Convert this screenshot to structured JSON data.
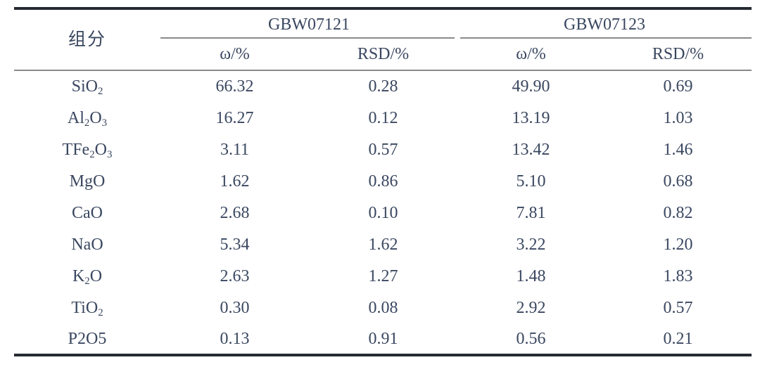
{
  "colors": {
    "background": "#ffffff",
    "text": "#3a4760",
    "rule_heavy": "#262b33",
    "rule_light": "#8a8a8a"
  },
  "table": {
    "component_header": "组分",
    "groups": [
      {
        "name": "GBW07121",
        "subheaders": [
          "ω/%",
          "RSD/%"
        ]
      },
      {
        "name": "GBW07123",
        "subheaders": [
          "ω/%",
          "RSD/%"
        ]
      }
    ],
    "rows": [
      {
        "component": "SiO_2",
        "values": [
          "66.32",
          "0.28",
          "49.90",
          "0.69"
        ]
      },
      {
        "component": "Al_2O_3",
        "values": [
          "16.27",
          "0.12",
          "13.19",
          "1.03"
        ]
      },
      {
        "component": "TFe_2O_3",
        "values": [
          "3.11",
          "0.57",
          "13.42",
          "1.46"
        ]
      },
      {
        "component": "MgO",
        "values": [
          "1.62",
          "0.86",
          "5.10",
          "0.68"
        ]
      },
      {
        "component": "CaO",
        "values": [
          "2.68",
          "0.10",
          "7.81",
          "0.82"
        ]
      },
      {
        "component": "NaO",
        "values": [
          "5.34",
          "1.62",
          "3.22",
          "1.20"
        ]
      },
      {
        "component": "K_2O",
        "values": [
          "2.63",
          "1.27",
          "1.48",
          "1.83"
        ]
      },
      {
        "component": "TiO_2",
        "values": [
          "0.30",
          "0.08",
          "2.92",
          "0.57"
        ]
      },
      {
        "component": "P2O5",
        "values": [
          "0.13",
          "0.91",
          "0.56",
          "0.21"
        ]
      }
    ]
  }
}
